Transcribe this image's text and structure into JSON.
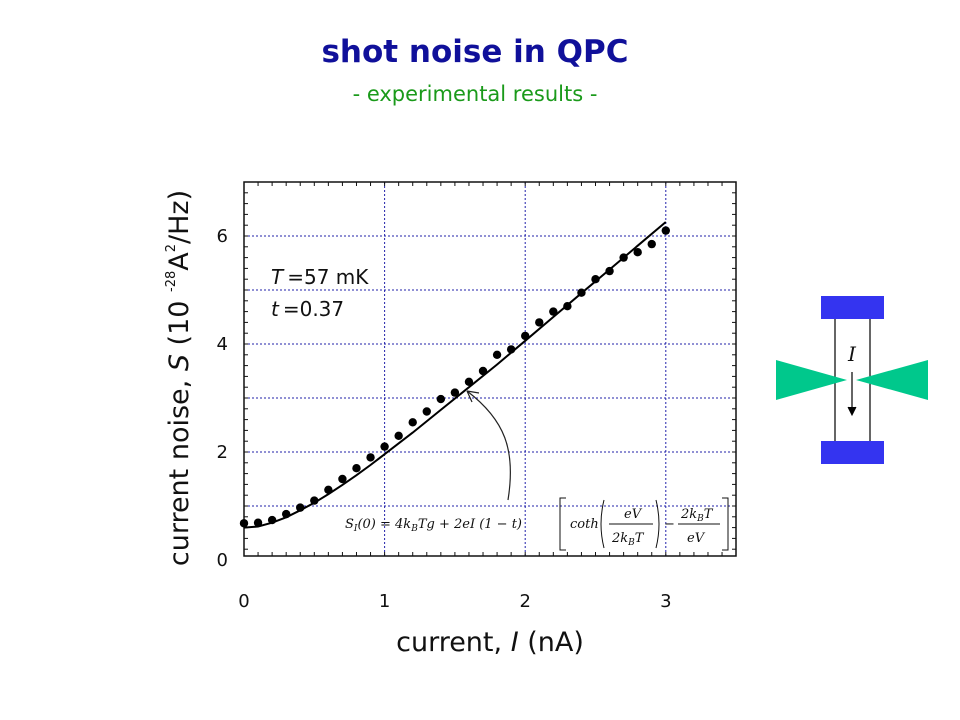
{
  "title": "shot noise in QPC",
  "subtitle": "- experimental results -",
  "chart_data": {
    "type": "scatter",
    "xlabel": "current, I (nA)",
    "xlabel_parts": {
      "prefix": "current, ",
      "symbol": "I",
      "suffix": " (nA)"
    },
    "ylabel": "current noise, S (10 -28 A2/Hz)",
    "ylabel_parts": {
      "prefix": "current noise, ",
      "symbol": "S",
      "unit_pre": " (10 ",
      "exp": "-28",
      "unit_a": "A",
      "exp2": "2",
      "unit_post": "/Hz)"
    },
    "xlim": [
      0,
      3.5
    ],
    "ylim": [
      0,
      7
    ],
    "xticks": [
      "0",
      "1",
      "2",
      "3"
    ],
    "yticks": [
      "0",
      "2",
      "4",
      "6"
    ],
    "grid": true,
    "annotation": {
      "temperature": {
        "symbol": "T",
        "value": "=57 mK"
      },
      "transmission": {
        "symbol": "t",
        "value": "=0.37"
      }
    },
    "formula": "S_I(0) = 4k_B T g + 2eI(1 - t)[coth(eV / 2k_B T) - 2k_B T / eV]",
    "series": [
      {
        "x": [
          0.0,
          0.1,
          0.2,
          0.3,
          0.4,
          0.5,
          0.6,
          0.7,
          0.8,
          0.9,
          1.0,
          1.1,
          1.2,
          1.3,
          1.4,
          1.5,
          1.6,
          1.7,
          1.8,
          1.9,
          2.0,
          2.1,
          2.2,
          2.3,
          2.4,
          2.5,
          2.6,
          2.7,
          2.8,
          2.9,
          3.0
        ],
        "y": [
          0.68,
          0.69,
          0.74,
          0.85,
          0.97,
          1.1,
          1.3,
          1.5,
          1.7,
          1.9,
          2.1,
          2.3,
          2.55,
          2.75,
          2.98,
          3.1,
          3.3,
          3.5,
          3.8,
          3.9,
          4.15,
          4.4,
          4.6,
          4.7,
          4.95,
          5.2,
          5.35,
          5.6,
          5.7,
          5.85,
          6.1
        ]
      },
      {
        "name": "fit",
        "x": [
          0.0,
          0.1,
          0.2,
          0.3,
          0.4,
          0.5,
          0.6,
          0.7,
          0.8,
          0.9,
          1.0,
          1.2,
          1.4,
          1.6,
          1.8,
          2.0,
          2.2,
          2.4,
          2.6,
          2.8,
          3.0
        ],
        "y": [
          0.6,
          0.62,
          0.69,
          0.79,
          0.92,
          1.06,
          1.22,
          1.39,
          1.57,
          1.76,
          1.96,
          2.36,
          2.78,
          3.2,
          3.62,
          4.06,
          4.5,
          4.94,
          5.38,
          5.82,
          6.26
        ]
      }
    ]
  },
  "qpc_diagram": {
    "current_label": "I",
    "colors": {
      "contact": "#3434f0",
      "gate": "#00c88c",
      "wire": "#000000"
    }
  },
  "colors": {
    "title": "#10109a",
    "subtitle": "#1a9a1a",
    "grid": "#2222aa",
    "points": "#000000"
  }
}
